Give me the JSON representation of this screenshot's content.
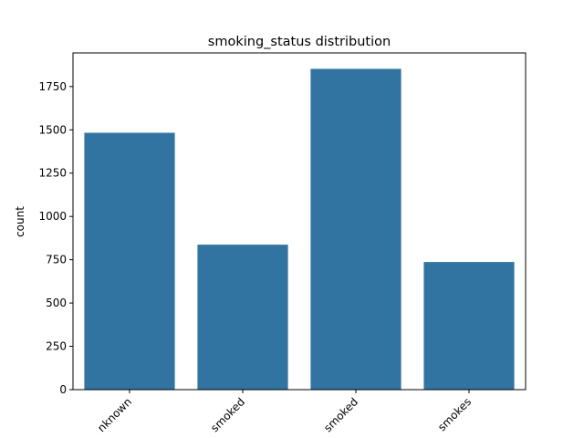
{
  "chart_data": {
    "type": "bar",
    "title": "smoking_status distribution",
    "xlabel": "",
    "ylabel": "count",
    "categories": [
      "Unknown",
      "formerly smoked",
      "never smoked",
      "smokes"
    ],
    "tick_labels_visible": [
      "nknown",
      "smoked",
      "smoked",
      "smokes"
    ],
    "values": [
      1483,
      837,
      1852,
      737
    ],
    "ylim": [
      0,
      1944
    ],
    "yticks": [
      0,
      250,
      500,
      750,
      1000,
      1250,
      1500,
      1750
    ],
    "bar_color": "#3274a1",
    "grid": false,
    "legend": "none",
    "xtick_rotation": 45
  }
}
